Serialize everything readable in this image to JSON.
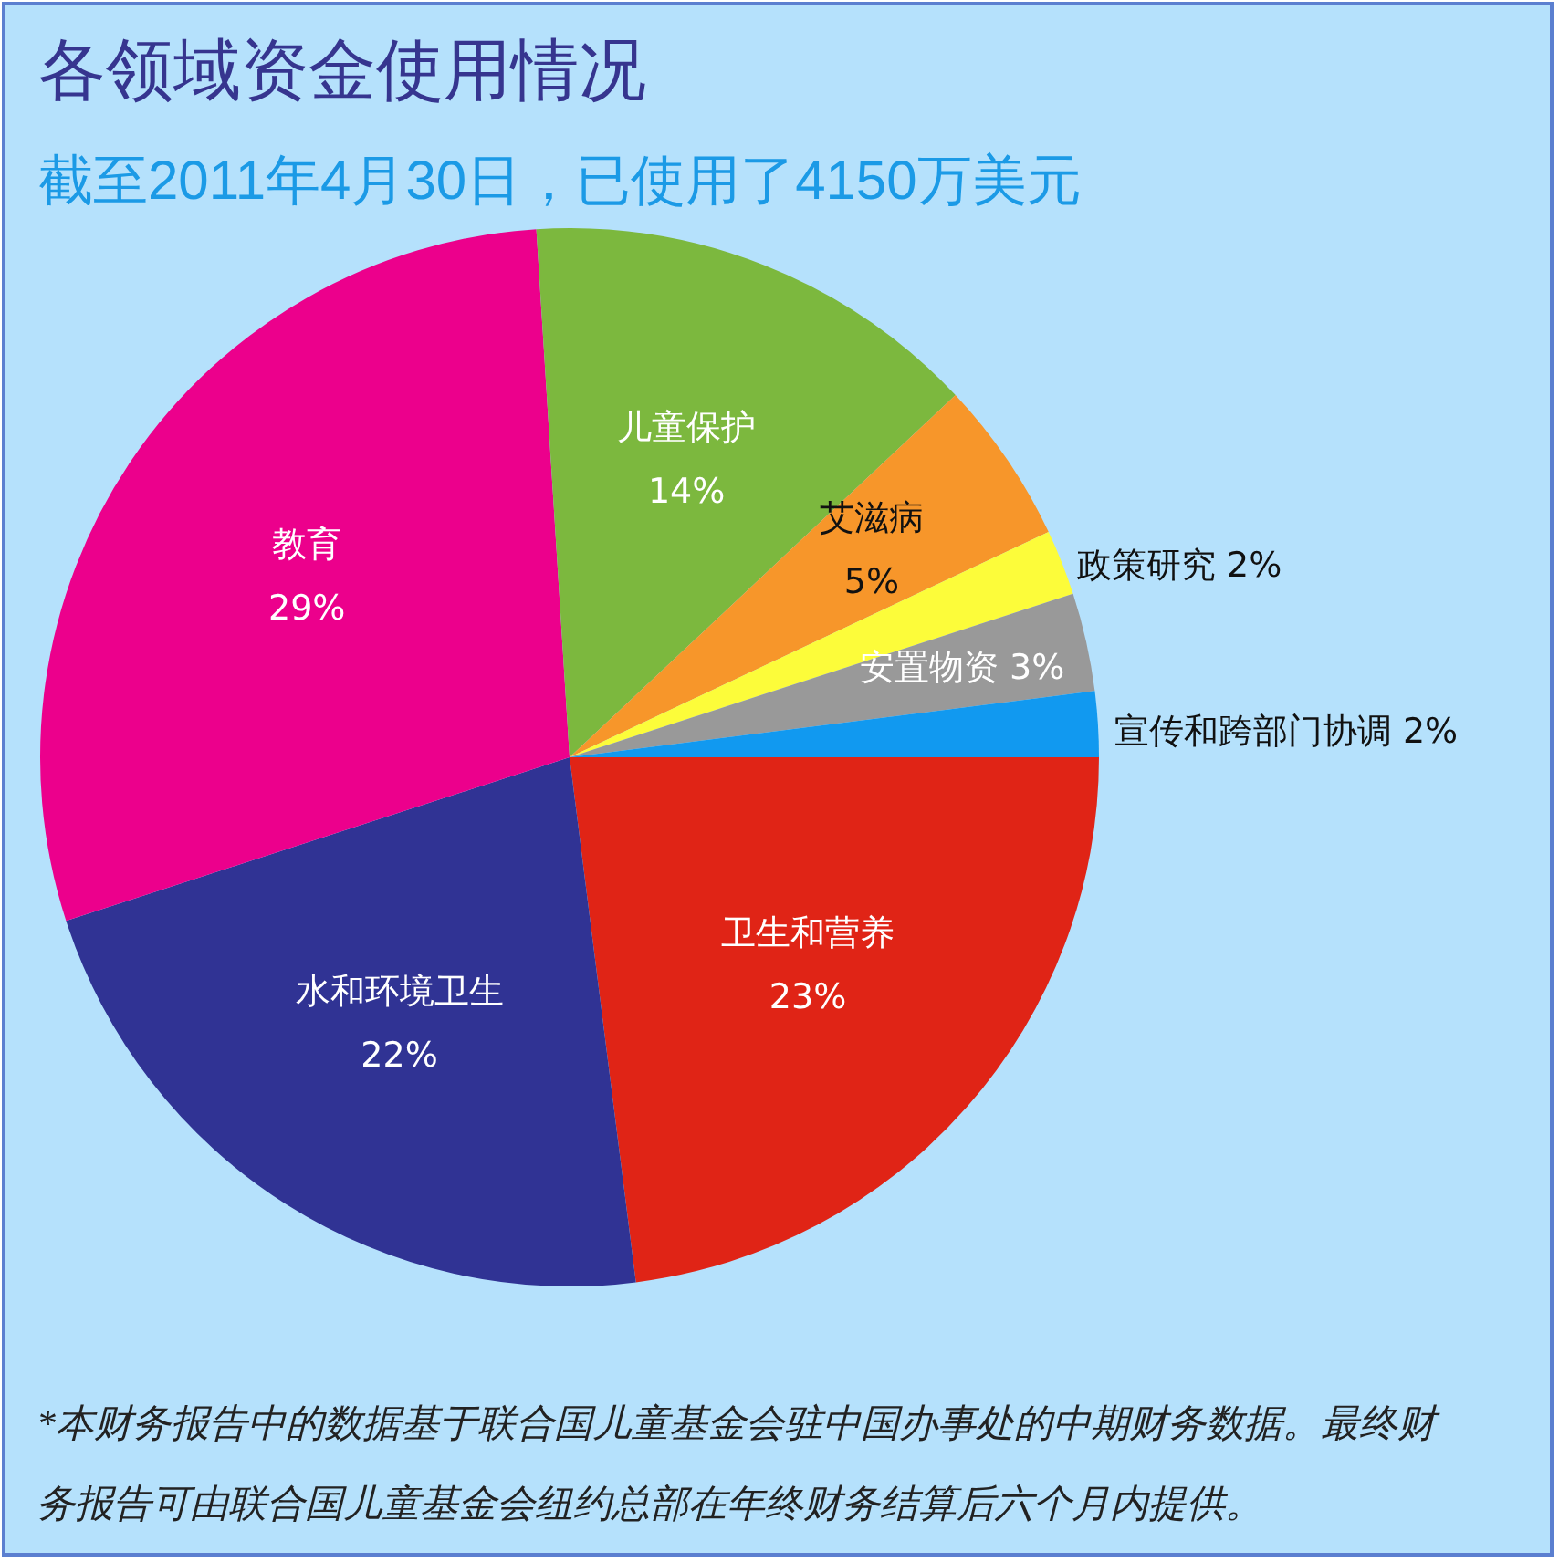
{
  "chart_data": {
    "type": "pie",
    "title": "各领域资金使用情况",
    "subtitle": "截至2011年4月30日，已使用了4150万美元",
    "categories": [
      "卫生和营养",
      "水和环境卫生",
      "教育",
      "儿童保护",
      "艾滋病",
      "政策研究",
      "安置物资",
      "宣传和跨部门协调"
    ],
    "values": [
      23,
      22,
      29,
      14,
      5,
      2,
      3,
      2
    ],
    "value_labels": [
      "23%",
      "22%",
      "29%",
      "14%",
      "5%",
      "2%",
      "3%",
      "2%"
    ],
    "colors": [
      "#e02416",
      "#303394",
      "#ec008c",
      "#7cb83e",
      "#f7962a",
      "#fcfc3a",
      "#999999",
      "#1199f0"
    ],
    "legend": false,
    "annotations": [
      "*本财务报告中的数据基于联合国儿童基金会驻中国办事处的中期财务数据。最终财务报告可由联合国儿童基金会纽约总部在年终财务结算后六个月内提供。"
    ]
  }
}
